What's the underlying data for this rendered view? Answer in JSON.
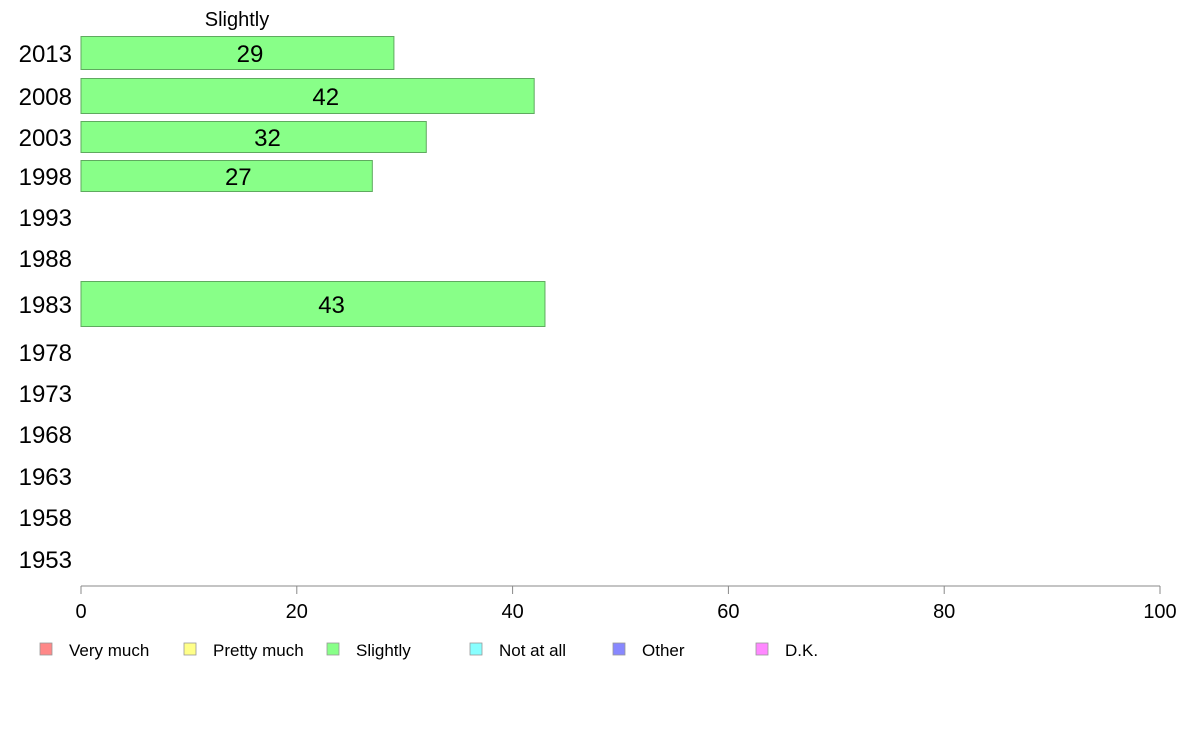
{
  "chart_data": {
    "type": "bar",
    "orientation": "horizontal",
    "series_title": "Slightly",
    "categories": [
      "2013",
      "2008",
      "2003",
      "1998",
      "1993",
      "1988",
      "1983",
      "1978",
      "1973",
      "1968",
      "1963",
      "1958",
      "1953"
    ],
    "series": [
      {
        "name": "Slightly",
        "color": "#88ff88",
        "values": [
          29,
          42,
          32,
          27,
          null,
          null,
          43,
          null,
          null,
          null,
          null,
          null,
          null
        ]
      }
    ],
    "data_labels": [
      "29",
      "42",
      "32",
      "27",
      "",
      "",
      "43",
      "",
      "",
      "",
      "",
      "",
      ""
    ],
    "xlim": [
      0,
      100
    ],
    "xticks": [
      0,
      20,
      40,
      60,
      80,
      100
    ],
    "grid": false,
    "legend_position": "bottom",
    "legend": [
      {
        "label": "Very much",
        "color": "#ff8888"
      },
      {
        "label": "Pretty much",
        "color": "#ffff88"
      },
      {
        "label": "Slightly",
        "color": "#88ff88"
      },
      {
        "label": "Not at all",
        "color": "#88ffff"
      },
      {
        "label": "Other",
        "color": "#8888ff"
      },
      {
        "label": "D.K.",
        "color": "#ff88ff"
      }
    ]
  }
}
